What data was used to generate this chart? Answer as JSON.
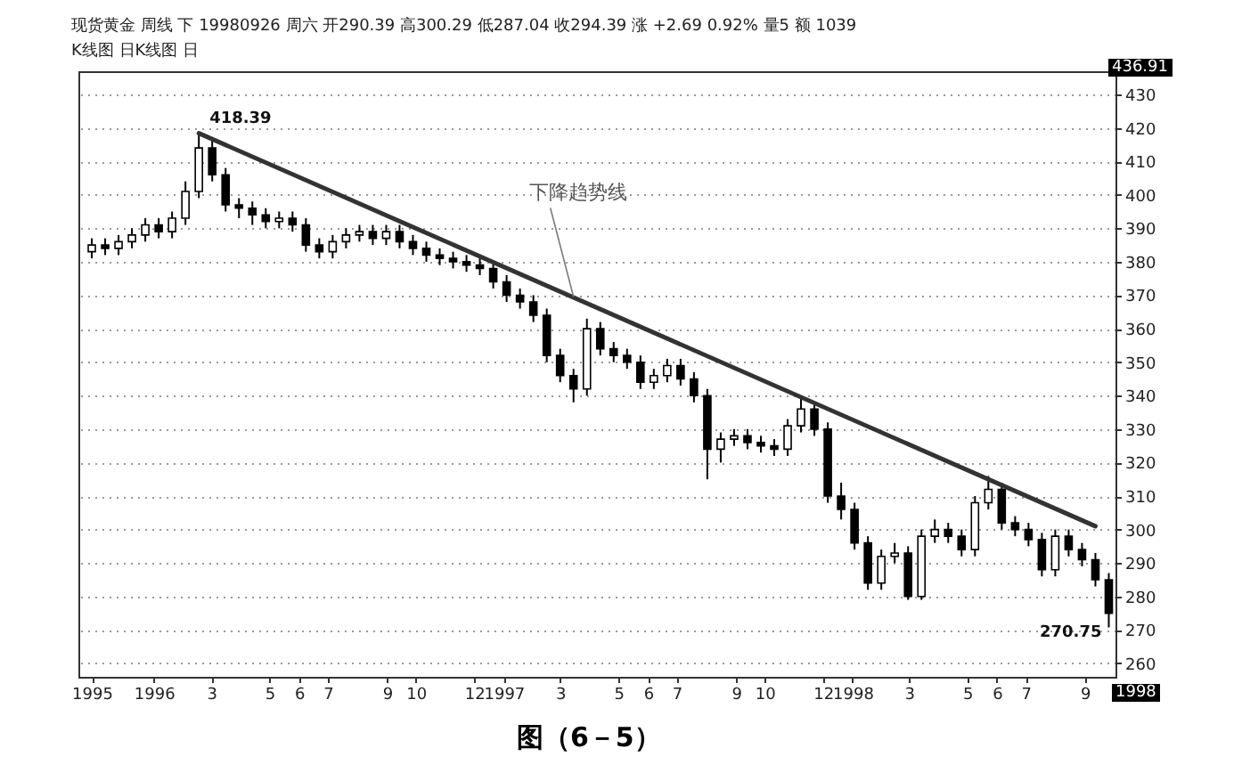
{
  "chart_data": {
    "type": "candlestick",
    "title": "现货黄金 周线 下 19980926 周六 开290.39 高300.29 低287.04 收294.39 涨 +2.69 0.92% 量5 额 1039",
    "x": [
      "1995-10-28",
      "1995-11-11",
      "1995-11-25",
      "1995-12-09",
      "1995-12-23",
      "1996-01-06",
      "1996-01-20",
      "1996-02-03",
      "1996-02-17",
      "1996-03-02",
      "1996-03-16",
      "1996-03-30",
      "1996-04-13",
      "1996-04-27",
      "1996-05-11",
      "1996-05-25",
      "1996-06-08",
      "1996-06-22",
      "1996-07-06",
      "1996-07-20",
      "1996-08-03",
      "1996-08-17",
      "1996-08-31",
      "1996-09-14",
      "1996-09-28",
      "1996-10-12",
      "1996-10-26",
      "1996-11-09",
      "1996-11-23",
      "1996-12-07",
      "1996-12-21",
      "1997-01-04",
      "1997-01-18",
      "1997-02-01",
      "1997-02-15",
      "1997-03-01",
      "1997-03-15",
      "1997-03-29",
      "1997-04-12",
      "1997-04-26",
      "1997-05-10",
      "1997-05-24",
      "1997-06-07",
      "1997-06-21",
      "1997-07-05",
      "1997-07-19",
      "1997-08-02",
      "1997-08-16",
      "1997-08-30",
      "1997-09-13",
      "1997-09-27",
      "1997-10-11",
      "1997-10-25",
      "1997-11-08",
      "1997-11-22",
      "1997-12-06",
      "1997-12-20",
      "1998-01-03",
      "1998-01-17",
      "1998-01-31",
      "1998-02-14",
      "1998-02-28",
      "1998-03-14",
      "1998-03-28",
      "1998-04-11",
      "1998-04-25",
      "1998-05-09",
      "1998-05-23",
      "1998-06-06",
      "1998-06-20",
      "1998-07-04",
      "1998-07-18",
      "1998-08-01",
      "1998-08-15",
      "1998-08-29",
      "1998-09-12",
      "1998-09-26"
    ],
    "ohlc": [
      [
        383,
        387,
        381,
        385
      ],
      [
        385,
        387,
        382,
        384
      ],
      [
        384,
        388,
        382,
        386
      ],
      [
        386,
        390,
        384,
        388
      ],
      [
        388,
        393,
        386,
        391
      ],
      [
        391,
        393,
        387,
        389
      ],
      [
        389,
        395,
        387,
        393
      ],
      [
        393,
        404,
        391,
        401
      ],
      [
        401,
        418.39,
        399,
        414
      ],
      [
        414,
        417,
        404,
        406
      ],
      [
        406,
        408,
        395,
        397
      ],
      [
        397,
        399,
        393,
        396
      ],
      [
        396,
        398,
        391,
        394
      ],
      [
        394,
        396,
        390,
        392
      ],
      [
        392,
        395,
        390,
        393
      ],
      [
        393,
        395,
        389,
        391
      ],
      [
        391,
        393,
        383,
        385
      ],
      [
        385,
        387,
        381,
        383
      ],
      [
        383,
        388,
        381,
        386
      ],
      [
        386,
        390,
        384,
        388
      ],
      [
        388,
        391,
        386,
        389
      ],
      [
        389,
        391,
        385,
        387
      ],
      [
        387,
        391,
        385,
        389
      ],
      [
        389,
        391,
        384,
        386
      ],
      [
        386,
        388,
        382,
        384
      ],
      [
        384,
        386,
        380,
        382
      ],
      [
        382,
        384,
        379,
        381
      ],
      [
        381,
        383,
        378,
        380
      ],
      [
        380,
        382,
        377,
        379
      ],
      [
        379,
        381,
        376,
        378
      ],
      [
        378,
        380,
        372,
        374
      ],
      [
        374,
        376,
        368,
        370
      ],
      [
        370,
        372,
        366,
        368
      ],
      [
        368,
        370,
        362,
        364
      ],
      [
        364,
        366,
        350,
        352
      ],
      [
        352,
        354,
        344,
        346
      ],
      [
        346,
        348,
        338,
        342
      ],
      [
        342,
        363,
        340,
        360
      ],
      [
        360,
        362,
        352,
        354
      ],
      [
        354,
        356,
        350,
        352
      ],
      [
        352,
        354,
        348,
        350
      ],
      [
        350,
        352,
        342,
        344
      ],
      [
        344,
        348,
        342,
        346
      ],
      [
        346,
        351,
        344,
        349
      ],
      [
        349,
        351,
        343,
        345
      ],
      [
        345,
        347,
        338,
        340
      ],
      [
        340,
        342,
        315,
        324
      ],
      [
        324,
        329,
        320,
        327
      ],
      [
        327,
        330,
        325,
        328
      ],
      [
        328,
        330,
        324,
        326
      ],
      [
        326,
        328,
        323,
        325
      ],
      [
        325,
        327,
        322,
        324
      ],
      [
        324,
        333,
        322,
        331
      ],
      [
        331,
        339,
        329,
        336
      ],
      [
        336,
        338,
        328,
        330
      ],
      [
        330,
        332,
        308,
        310
      ],
      [
        310,
        314,
        303,
        306
      ],
      [
        306,
        308,
        294,
        296
      ],
      [
        296,
        298,
        282,
        284
      ],
      [
        284,
        294,
        282,
        292
      ],
      [
        292,
        296,
        290,
        293
      ],
      [
        293,
        295,
        279,
        280
      ],
      [
        280,
        300,
        279,
        298
      ],
      [
        298,
        303,
        296,
        300
      ],
      [
        300,
        302,
        296,
        298
      ],
      [
        298,
        300,
        292,
        294
      ],
      [
        294,
        310,
        292,
        308
      ],
      [
        308,
        316,
        306,
        312
      ],
      [
        312,
        314,
        300,
        302
      ],
      [
        302,
        304,
        298,
        300
      ],
      [
        300,
        302,
        295,
        297
      ],
      [
        297,
        299,
        286,
        288
      ],
      [
        288,
        300,
        286,
        298
      ],
      [
        298,
        300,
        292,
        294
      ],
      [
        294,
        296,
        289,
        291
      ],
      [
        291,
        293,
        283,
        285
      ],
      [
        285,
        287,
        270.75,
        275
      ]
    ],
    "series": [
      {
        "type": "line",
        "color": "#333333",
        "x": [
          "1996-02-17",
          "1998-09-12"
        ],
        "values": [
          418.39,
          301
        ]
      }
    ],
    "xlim": [
      "1995-10-14",
      "1998-10-03"
    ],
    "xticks": [
      {
        "value": "1995-10-28",
        "label": "1995"
      },
      {
        "value": "1996-01-01",
        "label": "1996"
      },
      {
        "value": "1996-03-01",
        "label": "3"
      },
      {
        "value": "1996-05-01",
        "label": "5"
      },
      {
        "value": "1996-06-01",
        "label": "6"
      },
      {
        "value": "1996-07-01",
        "label": "7"
      },
      {
        "value": "1996-09-01",
        "label": "9"
      },
      {
        "value": "1996-10-01",
        "label": "10"
      },
      {
        "value": "1996-12-01",
        "label": "12"
      },
      {
        "value": "1997-01-01",
        "label": "1997"
      },
      {
        "value": "1997-03-01",
        "label": "3"
      },
      {
        "value": "1997-05-01",
        "label": "5"
      },
      {
        "value": "1997-06-01",
        "label": "6"
      },
      {
        "value": "1997-07-01",
        "label": "7"
      },
      {
        "value": "1997-09-01",
        "label": "9"
      },
      {
        "value": "1997-10-01",
        "label": "10"
      },
      {
        "value": "1997-12-01",
        "label": "12"
      },
      {
        "value": "1998-01-01",
        "label": "1998"
      },
      {
        "value": "1998-03-01",
        "label": "3"
      },
      {
        "value": "1998-05-01",
        "label": "5"
      },
      {
        "value": "1998-06-01",
        "label": "6"
      },
      {
        "value": "1998-07-01",
        "label": "7"
      },
      {
        "value": "1998-09-01",
        "label": "9"
      }
    ],
    "ylim": [
      256,
      436.91
    ],
    "yticks": [
      260,
      270,
      280,
      290,
      300,
      310,
      320,
      330,
      340,
      350,
      360,
      370,
      380,
      390,
      400,
      410,
      420,
      430
    ],
    "grid": "y",
    "annotations": [
      "K线图 日K线图 日",
      "436.91",
      "1998",
      "图（6－5）",
      {
        "text": "418.39",
        "x": "1996-02-17",
        "y": 418.39
      },
      {
        "text": "270.75",
        "x": "1998-09-26",
        "y": 270.75
      },
      {
        "text": "下降趋势线",
        "x": "1997-03-15",
        "y": 369.5
      }
    ]
  }
}
